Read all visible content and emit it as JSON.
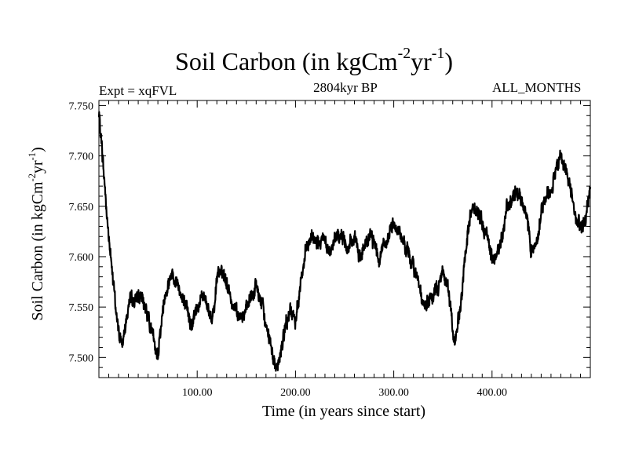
{
  "chart_data": {
    "type": "line",
    "title_main": "Soil Carbon (in kgCm",
    "title_sup1": "-2",
    "title_mid": "yr",
    "title_sup2": "-1",
    "title_end": ")",
    "subtitle": "2804kyr BP",
    "left_label": "Expt = xqFVL",
    "right_label": "ALL_MONTHS",
    "xlabel": "Time (in years since start)",
    "ylabel_main": "Soil Carbon (in kgCm",
    "ylabel_sup1": "-2",
    "ylabel_mid": "yr",
    "ylabel_sup2": "-1",
    "ylabel_end": ")",
    "xlim": [
      0,
      500
    ],
    "ylim": [
      7.48,
      7.755
    ],
    "x_ticks": [
      {
        "value": 100,
        "label": "100.00"
      },
      {
        "value": 200,
        "label": "200.00"
      },
      {
        "value": 300,
        "label": "300.00"
      },
      {
        "value": 400,
        "label": "400.00"
      }
    ],
    "y_ticks": [
      {
        "value": 7.5,
        "label": "7.500"
      },
      {
        "value": 7.55,
        "label": "7.550"
      },
      {
        "value": 7.6,
        "label": "7.600"
      },
      {
        "value": 7.65,
        "label": "7.650"
      },
      {
        "value": 7.7,
        "label": "7.700"
      },
      {
        "value": 7.75,
        "label": "7.750"
      }
    ],
    "series": [
      {
        "name": "Soil Carbon",
        "x": [
          0,
          3,
          6,
          9,
          12,
          15,
          18,
          21,
          24,
          27,
          30,
          35,
          40,
          45,
          50,
          55,
          58,
          60,
          63,
          66,
          70,
          75,
          80,
          85,
          90,
          95,
          100,
          105,
          110,
          115,
          120,
          125,
          130,
          135,
          140,
          145,
          150,
          155,
          160,
          165,
          170,
          175,
          180,
          183,
          186,
          190,
          195,
          200,
          205,
          210,
          215,
          220,
          225,
          230,
          235,
          240,
          245,
          250,
          255,
          260,
          265,
          270,
          275,
          280,
          285,
          290,
          295,
          300,
          305,
          310,
          315,
          320,
          325,
          330,
          335,
          340,
          345,
          350,
          355,
          360,
          363,
          366,
          370,
          375,
          380,
          385,
          390,
          395,
          400,
          405,
          410,
          415,
          420,
          425,
          430,
          435,
          440,
          445,
          450,
          455,
          460,
          465,
          470,
          475,
          480,
          485,
          490,
          495,
          500
        ],
        "y": [
          7.74,
          7.71,
          7.67,
          7.63,
          7.6,
          7.57,
          7.54,
          7.52,
          7.515,
          7.535,
          7.55,
          7.555,
          7.56,
          7.555,
          7.545,
          7.52,
          7.5,
          7.505,
          7.53,
          7.555,
          7.575,
          7.585,
          7.575,
          7.56,
          7.54,
          7.535,
          7.55,
          7.565,
          7.55,
          7.54,
          7.575,
          7.585,
          7.575,
          7.555,
          7.55,
          7.54,
          7.545,
          7.56,
          7.57,
          7.555,
          7.53,
          7.515,
          7.49,
          7.495,
          7.51,
          7.53,
          7.545,
          7.535,
          7.575,
          7.6,
          7.615,
          7.62,
          7.61,
          7.615,
          7.6,
          7.615,
          7.625,
          7.615,
          7.61,
          7.62,
          7.6,
          7.605,
          7.62,
          7.615,
          7.6,
          7.615,
          7.62,
          7.635,
          7.625,
          7.615,
          7.6,
          7.59,
          7.58,
          7.55,
          7.555,
          7.56,
          7.57,
          7.585,
          7.57,
          7.53,
          7.515,
          7.54,
          7.57,
          7.62,
          7.65,
          7.645,
          7.63,
          7.62,
          7.605,
          7.6,
          7.62,
          7.645,
          7.655,
          7.665,
          7.66,
          7.64,
          7.61,
          7.615,
          7.645,
          7.66,
          7.665,
          7.69,
          7.7,
          7.685,
          7.67,
          7.64,
          7.625,
          7.635,
          7.675
        ]
      }
    ]
  }
}
